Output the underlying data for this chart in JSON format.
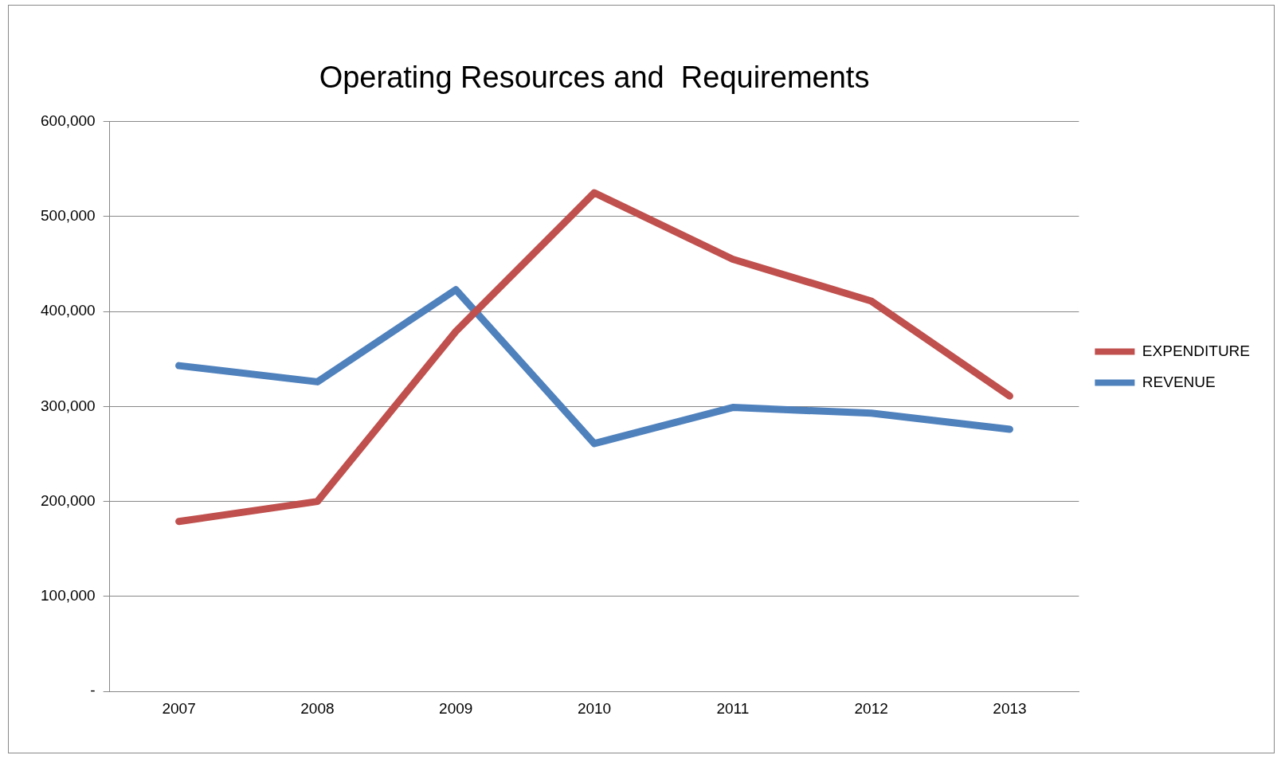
{
  "chart_data": {
    "type": "line",
    "title": "Operating Resources and  Requirements",
    "categories": [
      "2007",
      "2008",
      "2009",
      "2010",
      "2011",
      "2012",
      "2013"
    ],
    "series": [
      {
        "name": "EXPENDITURE",
        "color": "#c0504d",
        "values": [
          179000,
          200000,
          379000,
          525000,
          455000,
          411000,
          311000
        ]
      },
      {
        "name": "REVENUE",
        "color": "#4f81bd",
        "values": [
          343000,
          326000,
          423000,
          261000,
          299000,
          293000,
          276000
        ]
      }
    ],
    "ylim": [
      0,
      600000
    ],
    "yticks": [
      {
        "value": 0,
        "label": "-"
      },
      {
        "value": 100000,
        "label": "100,000"
      },
      {
        "value": 200000,
        "label": "200,000"
      },
      {
        "value": 300000,
        "label": "300,000"
      },
      {
        "value": 400000,
        "label": "400,000"
      },
      {
        "value": 500000,
        "label": "500,000"
      },
      {
        "value": 600000,
        "label": "600,000"
      }
    ],
    "grid": "y",
    "legend": "right",
    "marker": "none",
    "line_style": "solid"
  }
}
